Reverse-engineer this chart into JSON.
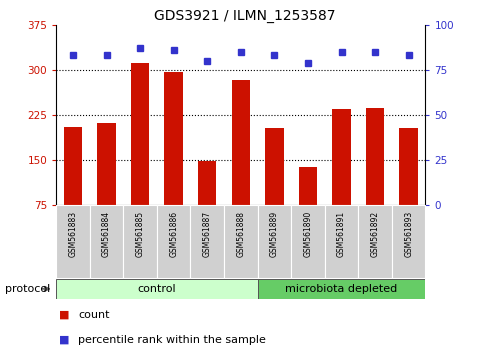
{
  "title": "GDS3921 / ILMN_1253587",
  "samples": [
    "GSM561883",
    "GSM561884",
    "GSM561885",
    "GSM561886",
    "GSM561887",
    "GSM561888",
    "GSM561889",
    "GSM561890",
    "GSM561891",
    "GSM561892",
    "GSM561893"
  ],
  "counts": [
    205,
    212,
    312,
    296,
    148,
    284,
    203,
    138,
    235,
    237,
    203
  ],
  "percentile_ranks": [
    83,
    83,
    87,
    86,
    80,
    85,
    83,
    79,
    85,
    85,
    83
  ],
  "ylim_left": [
    75,
    375
  ],
  "ylim_right": [
    0,
    100
  ],
  "yticks_left": [
    75,
    150,
    225,
    300,
    375
  ],
  "yticks_right": [
    0,
    25,
    50,
    75,
    100
  ],
  "bar_color": "#cc1100",
  "dot_color": "#3333cc",
  "control_color": "#ccffcc",
  "microbiota_color": "#66cc66",
  "control_label": "control",
  "microbiota_label": "microbiota depleted",
  "protocol_label": "protocol",
  "legend_count": "count",
  "legend_percentile": "percentile rank within the sample",
  "control_indices": [
    0,
    1,
    2,
    3,
    4,
    5
  ],
  "microbiota_indices": [
    6,
    7,
    8,
    9,
    10
  ],
  "tick_color_left": "#cc1100",
  "tick_color_right": "#3333cc",
  "grid_yticks": [
    150,
    225,
    300
  ],
  "bar_width": 0.55,
  "dot_size": 5
}
